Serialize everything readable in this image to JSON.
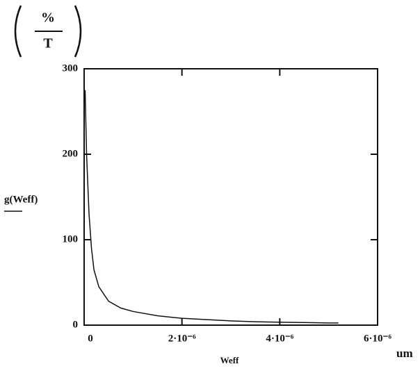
{
  "chart_data": {
    "type": "line",
    "ylabel": "g(Weff)",
    "y_unit": {
      "numerator": "%",
      "denominator": "T"
    },
    "xlabel": "Weff",
    "x_unit": "um",
    "x": [
      2e-08,
      5e-08,
      1e-07,
      1.5e-07,
      2e-07,
      3e-07,
      5e-07,
      7.5e-07,
      1e-06,
      1.5e-06,
      2e-06,
      2.5e-06,
      3e-06,
      3.5e-06,
      4e-06,
      4.5e-06,
      5e-06,
      5.2e-06
    ],
    "series": [
      {
        "color": "#111111",
        "values": [
          275,
          200,
          130,
          90,
          65,
          45,
          28,
          20,
          16,
          11,
          8,
          6.5,
          5,
          4,
          3.5,
          3,
          2.5,
          2.5
        ]
      }
    ],
    "xlim": [
      0,
      6e-06
    ],
    "ylim": [
      0,
      300
    ],
    "xticks": [
      0,
      {
        "value": 2e-06,
        "label": "2·10⁻⁶"
      },
      {
        "value": 4e-06,
        "label": "4·10⁻⁶"
      },
      {
        "value": 6e-06,
        "label": "6·10⁻⁶"
      }
    ],
    "yticks": [
      0,
      100,
      200,
      300
    ]
  }
}
